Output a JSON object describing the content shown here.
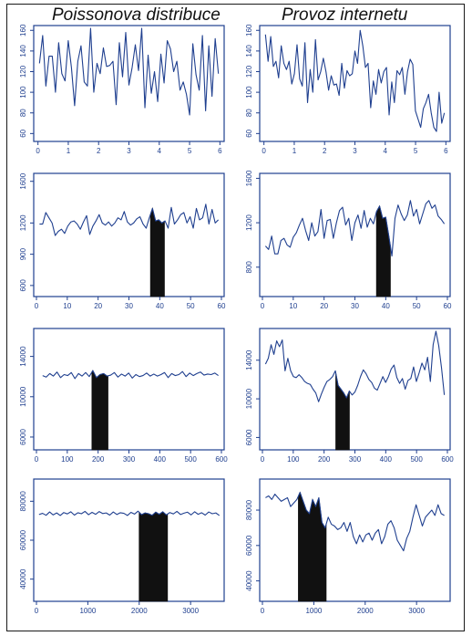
{
  "titles": {
    "left": "Poissonova distribuce",
    "right": "Provoz internetu"
  },
  "colors": {
    "line": "#1f3f8f",
    "axis": "#1f3f8f",
    "fill": "#111111"
  },
  "chart_data": [
    {
      "type": "line",
      "column": "Poissonova distribuce",
      "row": 1,
      "xticks": [
        0,
        1,
        2,
        3,
        4,
        5,
        6
      ],
      "yticks": [
        60,
        80,
        100,
        120,
        140,
        160
      ],
      "xlim": [
        -0.05,
        6.05
      ],
      "ylim": [
        55,
        162
      ],
      "x_start": 0.05,
      "x_end": 5.95,
      "values": [
        128,
        155,
        106,
        135,
        135,
        100,
        148,
        118,
        111,
        150,
        124,
        87,
        130,
        145,
        110,
        106,
        162,
        100,
        128,
        118,
        143,
        125,
        126,
        130,
        88,
        148,
        115,
        158,
        107,
        124,
        146,
        121,
        162,
        85,
        136,
        99,
        120,
        91,
        137,
        109,
        150,
        142,
        120,
        130,
        102,
        110,
        98,
        78,
        147,
        117,
        102,
        155,
        82,
        145,
        96,
        152,
        118
      ],
      "shade": null
    },
    {
      "type": "line",
      "column": "Provoz internetu",
      "row": 1,
      "xticks": [
        0,
        1,
        2,
        3,
        4,
        5,
        6
      ],
      "yticks": [
        60,
        80,
        100,
        120,
        140,
        160
      ],
      "xlim": [
        -0.05,
        6.05
      ],
      "ylim": [
        55,
        162
      ],
      "x_start": 0.05,
      "x_end": 5.95,
      "values": [
        156,
        130,
        154,
        125,
        130,
        114,
        145,
        128,
        122,
        130,
        108,
        118,
        146,
        113,
        106,
        148,
        90,
        122,
        100,
        151,
        112,
        120,
        133,
        120,
        102,
        116,
        107,
        108,
        97,
        128,
        104,
        121,
        116,
        118,
        140,
        128,
        160,
        145,
        124,
        128,
        85,
        111,
        98,
        122,
        109,
        120,
        124,
        78,
        110,
        90,
        121,
        117,
        124,
        98,
        120,
        132,
        127,
        82,
        74,
        66,
        84,
        90,
        98,
        80,
        66,
        62,
        100,
        70,
        80
      ],
      "shade": null
    },
    {
      "type": "line",
      "column": "Poissonova distribuce",
      "row": 2,
      "xticks": [
        0,
        10,
        20,
        30,
        40,
        50,
        60
      ],
      "yticks": [
        600,
        900,
        1200,
        1600
      ],
      "xlim": [
        0,
        60
      ],
      "ylim": [
        520,
        1650
      ],
      "x_start": 1,
      "x_end": 59,
      "values": [
        1190,
        1190,
        1300,
        1250,
        1200,
        1080,
        1120,
        1140,
        1100,
        1170,
        1210,
        1220,
        1190,
        1140,
        1210,
        1270,
        1090,
        1170,
        1220,
        1280,
        1200,
        1180,
        1210,
        1170,
        1200,
        1250,
        1230,
        1310,
        1210,
        1180,
        1200,
        1240,
        1260,
        1190,
        1150,
        1250,
        1340,
        1220,
        1230,
        1200,
        1220,
        1150,
        1350,
        1190,
        1230,
        1280,
        1300,
        1200,
        1260,
        1150,
        1340,
        1230,
        1250,
        1380,
        1190,
        1330,
        1200,
        1230
      ],
      "shade": [
        37,
        41.5
      ]
    },
    {
      "type": "line",
      "column": "Provoz internetu",
      "row": 2,
      "xticks": [
        0,
        10,
        20,
        30,
        40,
        50,
        60
      ],
      "yticks": [
        800,
        1200,
        1600
      ],
      "xlim": [
        0,
        60
      ],
      "ylim": [
        560,
        1620
      ],
      "x_start": 1,
      "x_end": 59,
      "values": [
        990,
        960,
        1080,
        920,
        920,
        1040,
        1060,
        1000,
        980,
        1070,
        1110,
        1180,
        1240,
        1130,
        1040,
        1200,
        1080,
        1120,
        1320,
        1060,
        1220,
        1230,
        1060,
        1200,
        1310,
        1340,
        1180,
        1240,
        1040,
        1200,
        1270,
        1150,
        1310,
        1160,
        1240,
        1190,
        1300,
        1350,
        1240,
        1250,
        1080,
        900,
        1240,
        1360,
        1280,
        1220,
        1270,
        1400,
        1260,
        1320,
        1190,
        1280,
        1370,
        1400,
        1330,
        1360,
        1260,
        1230,
        1190
      ],
      "shade": [
        37,
        41.5
      ]
    },
    {
      "type": "line",
      "column": "Poissonova distribuce",
      "row": 3,
      "xticks": [
        0,
        100,
        200,
        300,
        400,
        500,
        600
      ],
      "yticks": [
        6000,
        10000,
        14000
      ],
      "xlim": [
        0,
        600
      ],
      "ylim": [
        5000,
        16500
      ],
      "x_start": 20,
      "x_end": 590,
      "values": [
        12100,
        11950,
        12300,
        12050,
        12450,
        11900,
        12200,
        12100,
        12400,
        11800,
        12300,
        12050,
        12400,
        12000,
        12600,
        11900,
        12200,
        12300,
        12050,
        12150,
        12400,
        11950,
        12250,
        12050,
        12350,
        11850,
        12200,
        12000,
        12100,
        12350,
        12050,
        12250,
        12050,
        12200,
        12400,
        11900,
        12300,
        12100,
        12200,
        12500,
        12000,
        12350,
        12100,
        12300,
        12450,
        12150,
        12250,
        12200,
        12350,
        12100
      ],
      "shade": [
        180,
        232
      ]
    },
    {
      "type": "line",
      "column": "Provoz internetu",
      "row": 3,
      "xticks": [
        0,
        100,
        200,
        300,
        400,
        500,
        600
      ],
      "yticks": [
        6000,
        10000,
        14000
      ],
      "xlim": [
        0,
        600
      ],
      "ylim": [
        5000,
        17000
      ],
      "x_start": 10,
      "x_end": 590,
      "values": [
        13600,
        14200,
        15600,
        14600,
        16000,
        15400,
        16100,
        12900,
        14200,
        12900,
        12300,
        12200,
        12500,
        12200,
        11800,
        11600,
        11500,
        11000,
        10600,
        9700,
        10500,
        11200,
        11800,
        12000,
        12300,
        12900,
        11400,
        11000,
        10600,
        10100,
        10800,
        10400,
        10700,
        11400,
        12300,
        13000,
        12600,
        12000,
        11700,
        11100,
        10900,
        11600,
        12300,
        11700,
        12300,
        13100,
        13500,
        12200,
        11600,
        12100,
        11000,
        11900,
        12100,
        13300,
        11800,
        12700,
        13700,
        13000,
        14300,
        11800,
        15600,
        17000,
        15500,
        13200,
        10400
      ],
      "shade": [
        238,
        282
      ]
    },
    {
      "type": "line",
      "column": "Poissonova distribuce",
      "row": 4,
      "xticks": [
        0,
        1000,
        2000,
        3000
      ],
      "yticks": [
        40000,
        60000,
        80000
      ],
      "xlim": [
        0,
        3600
      ],
      "ylim": [
        30000,
        90000
      ],
      "x_start": 50,
      "x_end": 3560,
      "values": [
        73200,
        73800,
        72800,
        74500,
        73000,
        74000,
        72700,
        74200,
        73500,
        74600,
        72900,
        74100,
        73600,
        74800,
        73100,
        74300,
        73300,
        74700,
        73700,
        74000,
        72900,
        74500,
        73200,
        74100,
        73800,
        72700,
        74300,
        73400,
        74900,
        73100,
        74000,
        73600,
        72800,
        74400,
        73300,
        74600,
        73000,
        74200,
        73500,
        74800,
        73200,
        73900,
        74400,
        73000,
        74600,
        73300,
        74100,
        72900,
        74500,
        73600,
        74000,
        72700
      ],
      "shade": [
        2000,
        2550
      ]
    },
    {
      "type": "line",
      "column": "Provoz internetu",
      "row": 4,
      "xticks": [
        0,
        1000,
        2000,
        3000
      ],
      "yticks": [
        40000,
        60000,
        80000
      ],
      "xlim": [
        0,
        3600
      ],
      "ylim": [
        30000,
        96000
      ],
      "x_start": 60,
      "x_end": 3540,
      "values": [
        87000,
        88000,
        86000,
        89000,
        87000,
        85000,
        86000,
        87000,
        82000,
        84000,
        86000,
        90000,
        85000,
        80000,
        78000,
        86000,
        82000,
        87000,
        73000,
        70000,
        76000,
        72000,
        71000,
        69000,
        70000,
        73000,
        68000,
        73000,
        65000,
        61000,
        66000,
        62000,
        66000,
        67000,
        63000,
        67000,
        69000,
        61000,
        65000,
        72000,
        74000,
        70000,
        63000,
        60000,
        57000,
        64000,
        68000,
        76000,
        83000,
        77000,
        71000,
        76000,
        78000,
        80000,
        77000,
        83000,
        78000,
        77000
      ],
      "shade": [
        700,
        1240
      ]
    }
  ]
}
